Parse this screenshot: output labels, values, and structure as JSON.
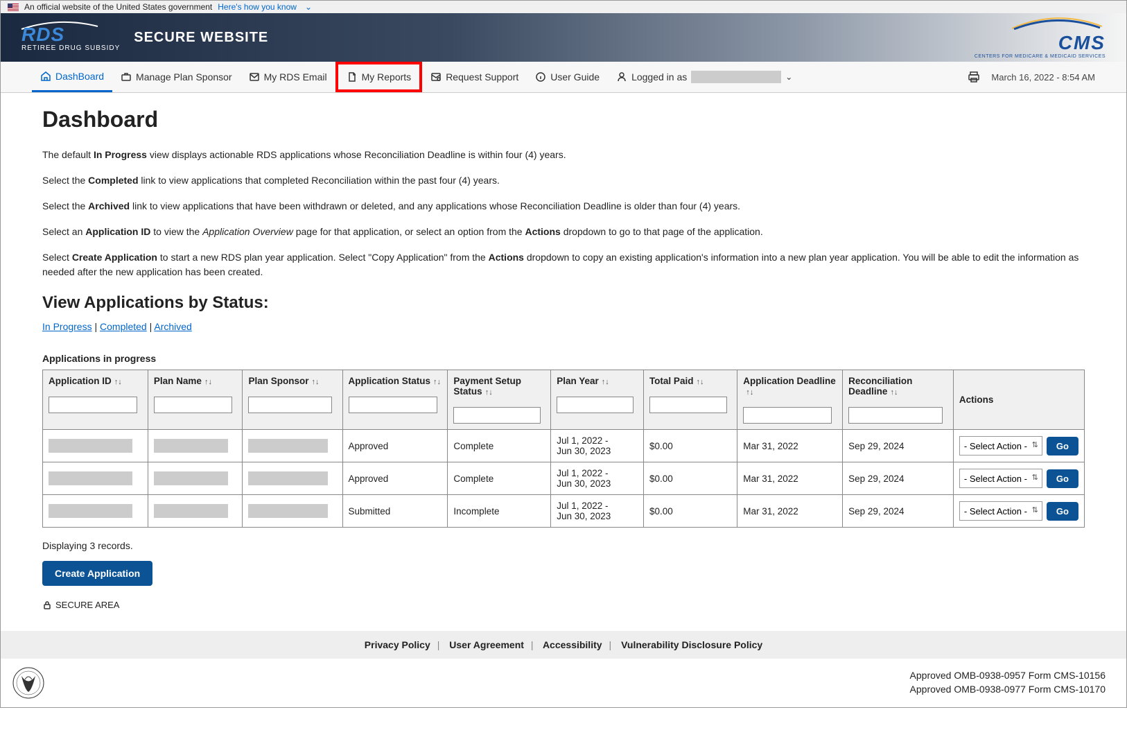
{
  "gov_banner": {
    "text": "An official website of the United States government",
    "link_text": "Here's how you know"
  },
  "header": {
    "logo_main": "RDS",
    "logo_sub": "RETIREE DRUG SUBSIDY",
    "secure_text": "SECURE WEBSITE",
    "cms_text": "CMS",
    "cms_sub": "CENTERS FOR MEDICARE & MEDICAID SERVICES"
  },
  "nav": {
    "dashboard": "DashBoard",
    "manage": "Manage Plan Sponsor",
    "email": "My RDS Email",
    "reports": "My Reports",
    "support": "Request Support",
    "guide": "User Guide",
    "logged_in": "Logged in as",
    "timestamp": "March 16, 2022 - 8:54 AM"
  },
  "page": {
    "title": "Dashboard",
    "p1_pre": "The default ",
    "p1_b": "In Progress",
    "p1_post": " view displays actionable RDS applications whose Reconciliation Deadline is within four (4) years.",
    "p2_pre": "Select the ",
    "p2_b": "Completed",
    "p2_post": " link to view applications that completed Reconciliation within the past four (4) years.",
    "p3_pre": "Select the ",
    "p3_b": "Archived",
    "p3_post": " link to view applications that have been withdrawn or deleted, and any applications whose Reconciliation Deadline is older than four (4) years.",
    "p4_pre": "Select an ",
    "p4_b": "Application ID",
    "p4_mid": " to view the ",
    "p4_i": "Application Overview",
    "p4_mid2": " page for that application, or select an option from the ",
    "p4_b2": "Actions",
    "p4_post": " dropdown to go to that page of the application.",
    "p5_pre": "Select ",
    "p5_b": "Create Application",
    "p5_mid": " to start a new RDS plan year application. Select \"Copy Application\" from the ",
    "p5_b2": "Actions",
    "p5_post": " dropdown to copy an existing application's information into a new plan year application. You will be able to edit the information as needed after the new application has been created.",
    "status_heading": "View Applications by Status:",
    "status_links": {
      "in_progress": "In Progress",
      "completed": "Completed",
      "archived": "Archived"
    },
    "table_title": "Applications in progress",
    "columns": {
      "app_id": "Application ID",
      "plan_name": "Plan Name",
      "plan_sponsor": "Plan Sponsor",
      "app_status": "Application Status",
      "payment_status": "Payment Setup Status",
      "plan_year": "Plan Year",
      "total_paid": "Total Paid",
      "app_deadline": "Application Deadline",
      "recon_deadline": "Reconciliation Deadline",
      "actions": "Actions"
    },
    "rows": [
      {
        "app_status": "Approved",
        "payment_status": "Complete",
        "plan_year": "Jul 1, 2022 - Jun 30, 2023",
        "total_paid": "$0.00",
        "app_deadline": "Mar 31, 2022",
        "recon_deadline": "Sep 29, 2024"
      },
      {
        "app_status": "Approved",
        "payment_status": "Complete",
        "plan_year": "Jul 1, 2022 - Jun 30, 2023",
        "total_paid": "$0.00",
        "app_deadline": "Mar 31, 2022",
        "recon_deadline": "Sep 29, 2024"
      },
      {
        "app_status": "Submitted",
        "payment_status": "Incomplete",
        "plan_year": "Jul 1, 2022 - Jun 30, 2023",
        "total_paid": "$0.00",
        "app_deadline": "Mar 31, 2022",
        "recon_deadline": "Sep 29, 2024"
      }
    ],
    "select_placeholder": "- Select Action -",
    "go_label": "Go",
    "record_count": "Displaying 3 records.",
    "create_btn": "Create Application",
    "secure_area": "SECURE AREA"
  },
  "footer": {
    "privacy": "Privacy Policy",
    "agreement": "User Agreement",
    "accessibility": "Accessibility",
    "vuln": "Vulnerability Disclosure Policy",
    "omb1": "Approved OMB-0938-0957 Form CMS-10156",
    "omb2": "Approved OMB-0938-0977 Form CMS-10170"
  },
  "colors": {
    "link": "#0066cc",
    "button": "#0b5394",
    "header_dark": "#1a2940",
    "border": "#888"
  }
}
